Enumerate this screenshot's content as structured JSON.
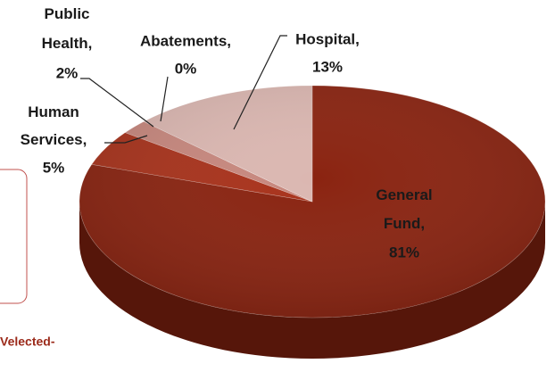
{
  "chart_data": {
    "type": "pie",
    "categories": [
      "General Fund,",
      "Human Services,",
      "Public Health,",
      "Abatements,",
      "Hospital,"
    ],
    "values": [
      81,
      5,
      2,
      0,
      13
    ],
    "value_labels": [
      "81%",
      "5%",
      "2%",
      "0%",
      "13%"
    ],
    "colors": [
      "#8a2310",
      "#a8321b",
      "#c7877d",
      "#d3a199",
      "#dbb7b1"
    ],
    "annotations": [
      "Velected-"
    ]
  }
}
